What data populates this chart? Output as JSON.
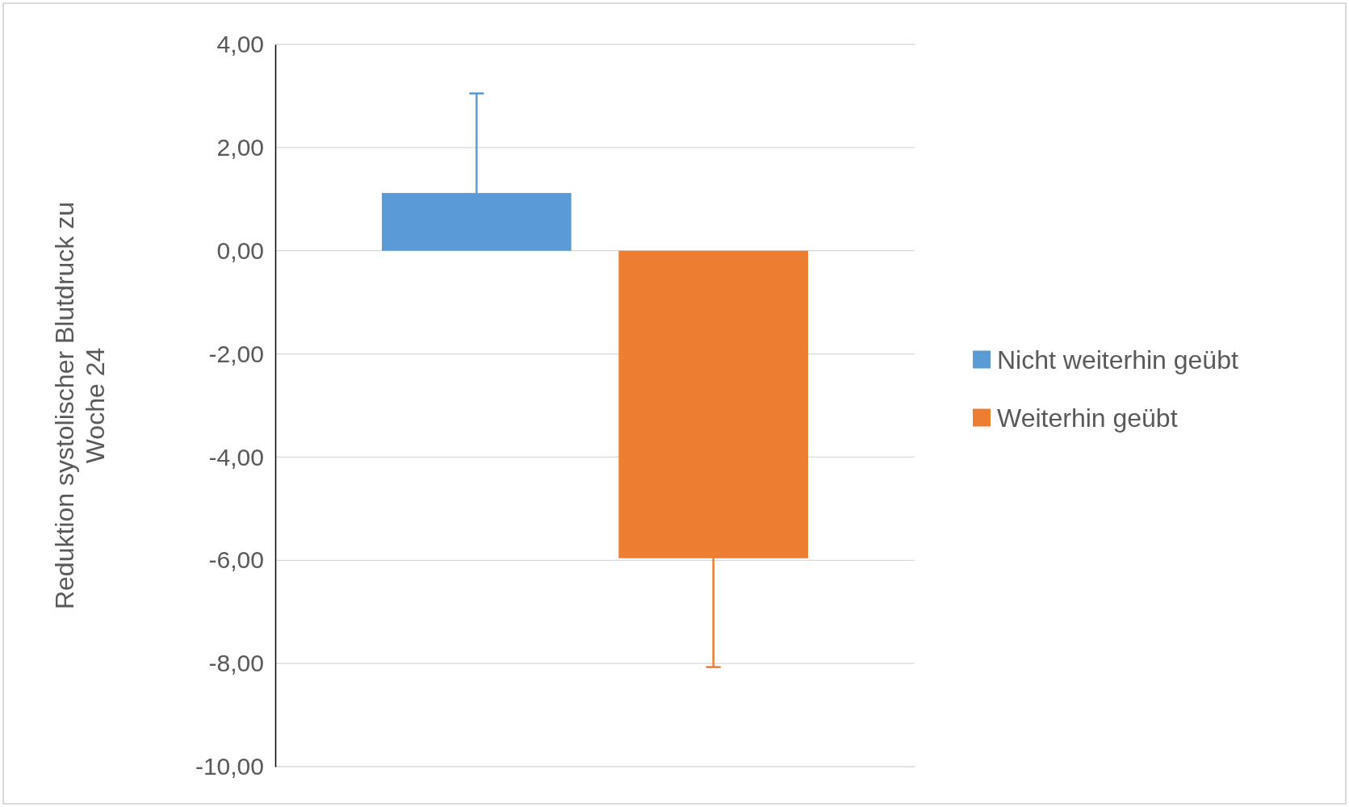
{
  "chart_data": {
    "type": "bar",
    "ylabel": "Reduktion systolischer Blutdruck zu Woche 24",
    "categories": [
      null
    ],
    "series": [
      {
        "name": "Nicht weiterhin geübt",
        "color": "#5b9bd5",
        "values": [
          1.12
        ],
        "errors": [
          [
            1.12,
            3.05
          ]
        ]
      },
      {
        "name": "Weiterhin geübt",
        "color": "#ed7d31",
        "values": [
          -5.96
        ],
        "errors": [
          [
            -8.07,
            -5.96
          ]
        ]
      }
    ],
    "ylim": [
      -10,
      4
    ],
    "yticks": [
      {
        "value": -10,
        "label": "-10,00"
      },
      {
        "value": -8,
        "label": "-8,00"
      },
      {
        "value": -6,
        "label": "-6,00"
      },
      {
        "value": -4,
        "label": "-4,00"
      },
      {
        "value": -2,
        "label": "-2,00"
      },
      {
        "value": 0,
        "label": "0,00"
      },
      {
        "value": 2,
        "label": "2,00"
      },
      {
        "value": 4,
        "label": "4,00"
      }
    ],
    "grid": "y",
    "legend": "right"
  }
}
